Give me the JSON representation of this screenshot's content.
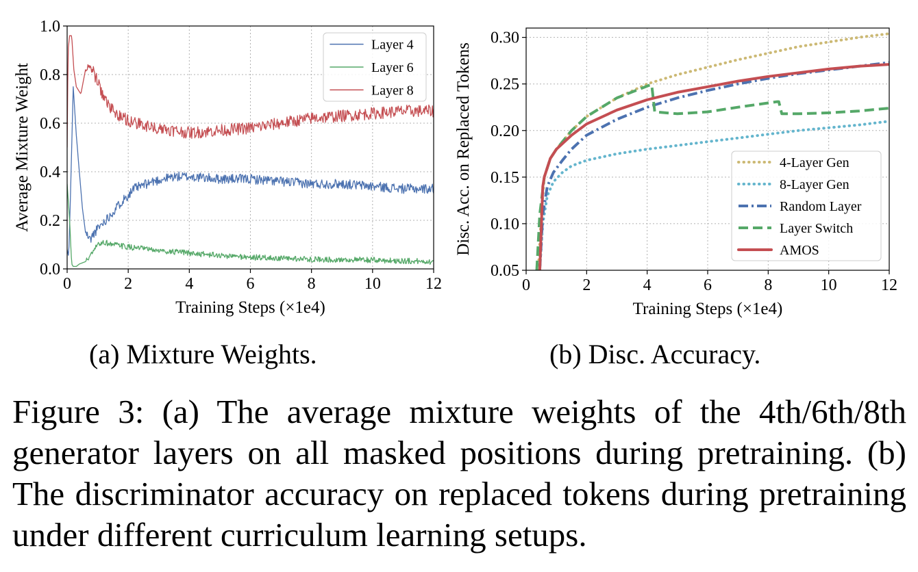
{
  "chart_data": [
    {
      "type": "line",
      "id": "mixture",
      "title": "",
      "xlabel": "Training Steps (×1e4)",
      "ylabel": "Average Mixture Weight",
      "xlim": [
        0,
        12
      ],
      "ylim": [
        0,
        1.0
      ],
      "xticks": [
        0,
        2,
        4,
        6,
        8,
        10,
        12
      ],
      "xtick_labels": [
        "0",
        "2",
        "4",
        "6",
        "8",
        "10",
        "12"
      ],
      "yticks": [
        0,
        0.2,
        0.4,
        0.6,
        0.8,
        1.0
      ],
      "ytick_labels": [
        "0.0",
        "0.2",
        "0.4",
        "0.6",
        "0.8",
        "1.0"
      ],
      "grid": true,
      "legend_position": "top-right",
      "series": [
        {
          "name": "Layer 4",
          "color": "#4c72b0",
          "noise": 0.02,
          "x": [
            0,
            0.05,
            0.12,
            0.2,
            0.3,
            0.4,
            0.5,
            0.6,
            0.75,
            0.9,
            1.1,
            1.4,
            1.8,
            2.2,
            2.8,
            3.5,
            4.0,
            5.0,
            6.0,
            7.0,
            8.0,
            9.0,
            10.0,
            11.0,
            12.0
          ],
          "y": [
            0.08,
            0.05,
            0.35,
            0.75,
            0.55,
            0.4,
            0.25,
            0.15,
            0.12,
            0.15,
            0.18,
            0.22,
            0.28,
            0.33,
            0.36,
            0.38,
            0.38,
            0.37,
            0.37,
            0.36,
            0.35,
            0.35,
            0.34,
            0.33,
            0.33
          ]
        },
        {
          "name": "Layer 6",
          "color": "#55a868",
          "noise": 0.012,
          "x": [
            0,
            0.08,
            0.15,
            0.2,
            0.3,
            0.4,
            0.6,
            0.8,
            1.0,
            1.2,
            1.5,
            2.0,
            3.0,
            4.0,
            5.0,
            6.0,
            7.0,
            8.0,
            9.0,
            10.0,
            11.0,
            12.0
          ],
          "y": [
            0.35,
            0.2,
            0.02,
            0.01,
            0.01,
            0.02,
            0.03,
            0.06,
            0.1,
            0.11,
            0.1,
            0.09,
            0.075,
            0.065,
            0.055,
            0.048,
            0.043,
            0.04,
            0.038,
            0.036,
            0.033,
            0.03
          ]
        },
        {
          "name": "Layer 8",
          "color": "#c44e52",
          "noise": 0.025,
          "x": [
            0,
            0.03,
            0.08,
            0.15,
            0.22,
            0.3,
            0.45,
            0.6,
            0.75,
            0.9,
            1.1,
            1.3,
            1.6,
            2.0,
            2.5,
            3.0,
            3.5,
            4.0,
            5.0,
            6.0,
            7.0,
            8.0,
            9.0,
            10.0,
            11.0,
            12.0
          ],
          "y": [
            0.5,
            0.9,
            0.96,
            0.96,
            0.82,
            0.75,
            0.72,
            0.82,
            0.84,
            0.8,
            0.74,
            0.68,
            0.64,
            0.61,
            0.59,
            0.58,
            0.57,
            0.56,
            0.57,
            0.58,
            0.6,
            0.62,
            0.63,
            0.64,
            0.65,
            0.65
          ]
        }
      ]
    },
    {
      "type": "line",
      "id": "accuracy",
      "title": "",
      "xlabel": "Training Steps (×1e4)",
      "ylabel": "Disc. Acc. on Replaced Tokens",
      "xlim": [
        0,
        12
      ],
      "ylim": [
        0.05,
        0.31
      ],
      "xticks": [
        0,
        2,
        4,
        6,
        8,
        10,
        12
      ],
      "xtick_labels": [
        "0",
        "2",
        "4",
        "6",
        "8",
        "10",
        "12"
      ],
      "yticks": [
        0.05,
        0.1,
        0.15,
        0.2,
        0.25,
        0.3
      ],
      "ytick_labels": [
        "0.05",
        "0.10",
        "0.15",
        "0.20",
        "0.25",
        "0.30"
      ],
      "grid": true,
      "legend_position": "bottom-right",
      "series": [
        {
          "name": "4-Layer Gen",
          "color": "#ccb974",
          "style": "dotted",
          "x": [
            0.4,
            0.5,
            0.6,
            0.8,
            1.0,
            1.5,
            2.0,
            3.0,
            4.0,
            5.0,
            6.0,
            7.0,
            8.0,
            9.0,
            10.0,
            11.0,
            12.0
          ],
          "y": [
            0.05,
            0.11,
            0.15,
            0.17,
            0.18,
            0.2,
            0.215,
            0.235,
            0.25,
            0.26,
            0.268,
            0.276,
            0.283,
            0.29,
            0.295,
            0.3,
            0.304
          ]
        },
        {
          "name": "8-Layer Gen",
          "color": "#64b5cd",
          "style": "dotted",
          "x": [
            0.45,
            0.55,
            0.7,
            0.9,
            1.2,
            1.5,
            2.0,
            3.0,
            4.0,
            5.0,
            6.0,
            7.0,
            8.0,
            9.0,
            10.0,
            11.0,
            12.0
          ],
          "y": [
            0.05,
            0.1,
            0.13,
            0.145,
            0.155,
            0.162,
            0.168,
            0.175,
            0.18,
            0.184,
            0.188,
            0.192,
            0.196,
            0.2,
            0.203,
            0.206,
            0.21
          ]
        },
        {
          "name": "Random Layer",
          "color": "#4c72b0",
          "style": "dashdot",
          "x": [
            0.45,
            0.55,
            0.7,
            0.9,
            1.2,
            1.5,
            2.0,
            3.0,
            4.0,
            5.0,
            6.0,
            7.0,
            8.0,
            9.0,
            10.0,
            11.0,
            12.0
          ],
          "y": [
            0.05,
            0.11,
            0.14,
            0.155,
            0.168,
            0.18,
            0.195,
            0.212,
            0.225,
            0.235,
            0.243,
            0.25,
            0.256,
            0.261,
            0.265,
            0.269,
            0.273
          ]
        },
        {
          "name": "Layer Switch",
          "color": "#55a868",
          "style": "dashed",
          "x": [
            0.35,
            0.45,
            0.6,
            0.8,
            1.0,
            1.5,
            2.0,
            3.0,
            4.1,
            4.15,
            4.25,
            5.0,
            6.0,
            7.0,
            8.3,
            8.35,
            8.45,
            9.0,
            10.0,
            11.0,
            12.0
          ],
          "y": [
            0.05,
            0.11,
            0.15,
            0.17,
            0.18,
            0.2,
            0.215,
            0.235,
            0.249,
            0.249,
            0.22,
            0.218,
            0.22,
            0.225,
            0.231,
            0.231,
            0.218,
            0.218,
            0.219,
            0.221,
            0.224
          ]
        },
        {
          "name": "AMOS",
          "color": "#c44e52",
          "style": "solid",
          "x": [
            0.45,
            0.55,
            0.6,
            0.8,
            1.0,
            1.5,
            2.0,
            3.0,
            4.0,
            5.0,
            6.0,
            7.0,
            8.0,
            9.0,
            10.0,
            11.0,
            12.0
          ],
          "y": [
            0.05,
            0.14,
            0.15,
            0.17,
            0.18,
            0.195,
            0.207,
            0.222,
            0.233,
            0.241,
            0.247,
            0.253,
            0.258,
            0.262,
            0.266,
            0.269,
            0.271
          ]
        }
      ]
    }
  ],
  "subcaptions": {
    "a": "(a) Mixture Weights.",
    "b": "(b) Disc. Accuracy."
  },
  "figure_caption": "Figure 3: (a) The average mixture weights of the 4th/6th/8th generator layers on all masked positions during pretraining. (b) The discriminator accuracy on replaced tokens during pretraining under different curriculum learning setups."
}
